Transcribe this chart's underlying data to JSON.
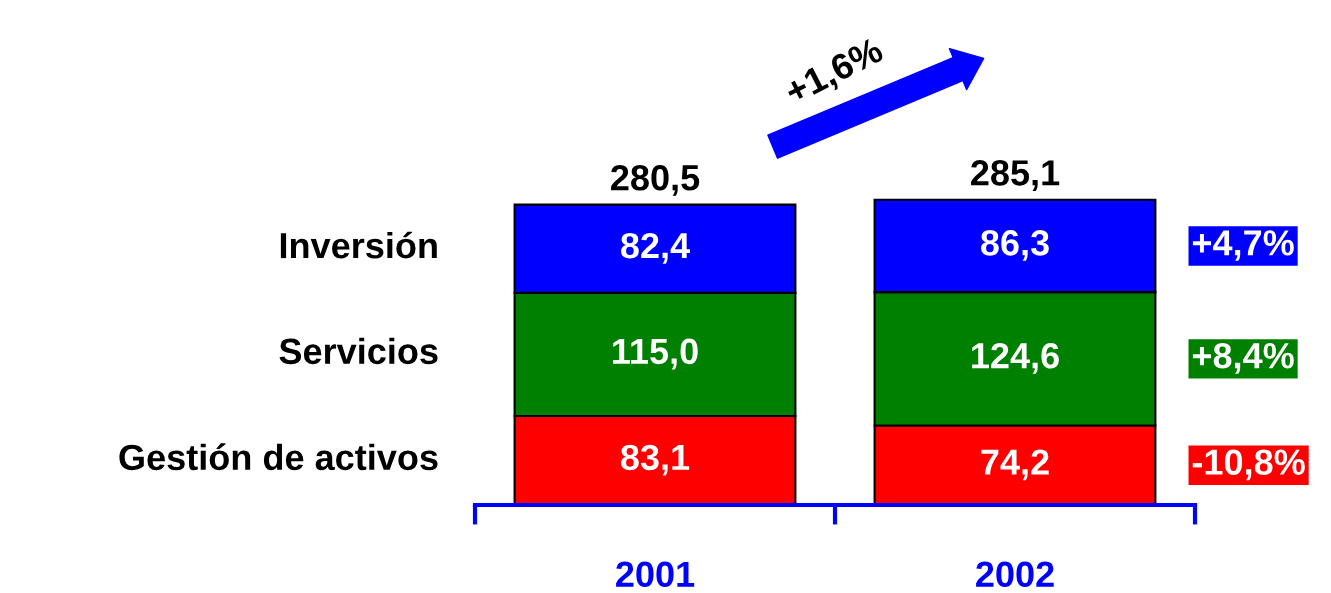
{
  "chart_data": {
    "type": "bar",
    "stacked": true,
    "categories": [
      "2001",
      "2002"
    ],
    "series": [
      {
        "name": "Gestión de activos",
        "color": "#ff0000",
        "values": [
          83.1,
          74.2
        ],
        "value_labels": [
          "83,1",
          "74,2"
        ]
      },
      {
        "name": "Servicios",
        "color": "#008000",
        "values": [
          115.0,
          124.6
        ],
        "value_labels": [
          "115,0",
          "124,6"
        ]
      },
      {
        "name": "Inversión",
        "color": "#0000ff",
        "values": [
          82.4,
          86.3
        ],
        "value_labels": [
          "82,4",
          "86,3"
        ]
      }
    ],
    "totals": [
      "280,5",
      "285,1"
    ],
    "annotations": [
      "+1,6%",
      "+4,7%",
      "+8,4%",
      "-10,8%"
    ],
    "grid": false,
    "legend": false
  }
}
